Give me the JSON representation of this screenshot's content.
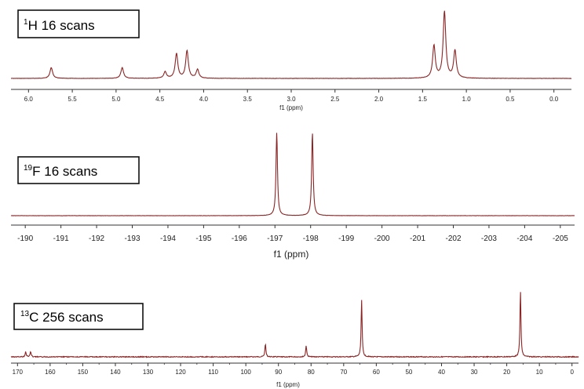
{
  "chart_data": [
    {
      "type": "line",
      "title_nucleus": "1",
      "title_element": "H",
      "title_text": " 16 scans",
      "xlabel": "f1 (ppm)",
      "x_reversed": true,
      "xlim": [
        6.2,
        -0.2
      ],
      "ticks": [
        6.0,
        5.5,
        5.0,
        4.5,
        4.0,
        3.5,
        3.0,
        2.5,
        2.0,
        1.5,
        1.0,
        0.5,
        0.0
      ],
      "tick_labels": [
        "6.0",
        "5.5",
        "5.0",
        "4.5",
        "4.0",
        "3.5",
        "3.0",
        "2.5",
        "2.0",
        "1.5",
        "1.0",
        "0.5",
        "0.0"
      ],
      "line_color": "#8b2525",
      "peaks": [
        {
          "x": 5.74,
          "y": 15
        },
        {
          "x": 4.93,
          "y": 15
        },
        {
          "x": 4.44,
          "y": 9
        },
        {
          "x": 4.31,
          "y": 34
        },
        {
          "x": 4.19,
          "y": 38
        },
        {
          "x": 4.07,
          "y": 12
        },
        {
          "x": 1.37,
          "y": 45
        },
        {
          "x": 1.25,
          "y": 92
        },
        {
          "x": 1.13,
          "y": 38
        }
      ],
      "ylim": [
        0,
        100
      ]
    },
    {
      "type": "line",
      "title_nucleus": "19",
      "title_element": "F",
      "title_text": " 16 scans",
      "xlabel": "f1 (ppm)",
      "x_reversed": true,
      "xlim": [
        -189.6,
        -205.4
      ],
      "ticks": [
        -190,
        -191,
        -192,
        -193,
        -194,
        -195,
        -196,
        -197,
        -198,
        -199,
        -200,
        -201,
        -202,
        -203,
        -204,
        -205
      ],
      "tick_labels": [
        "-190",
        "-191",
        "-192",
        "-193",
        "-194",
        "-195",
        "-196",
        "-197",
        "-198",
        "-199",
        "-200",
        "-201",
        "-202",
        "-203",
        "-204",
        "-205"
      ],
      "line_color": "#8b2525",
      "peaks": [
        {
          "x": -197.05,
          "y": 100
        },
        {
          "x": -198.05,
          "y": 100
        }
      ],
      "ylim": [
        0,
        100
      ]
    },
    {
      "type": "line",
      "title_nucleus": "13",
      "title_element": "C",
      "title_text": " 256 scans",
      "xlabel": "f1 (ppm)",
      "x_reversed": true,
      "xlim": [
        172,
        -2
      ],
      "ticks": [
        170,
        160,
        150,
        140,
        130,
        120,
        110,
        100,
        90,
        80,
        70,
        60,
        50,
        40,
        30,
        20,
        10,
        0
      ],
      "tick_labels": [
        "170",
        "160",
        "150",
        "140",
        "130",
        "120",
        "110",
        "100",
        "90",
        "80",
        "70",
        "60",
        "50",
        "40",
        "30",
        "20",
        "10",
        "0"
      ],
      "line_color": "#8b2525",
      "peaks": [
        {
          "x": 167.5,
          "y": 8
        },
        {
          "x": 166.0,
          "y": 8
        },
        {
          "x": 94.0,
          "y": 20
        },
        {
          "x": 81.5,
          "y": 17
        },
        {
          "x": 64.5,
          "y": 85
        },
        {
          "x": 15.8,
          "y": 98
        }
      ],
      "ylim": [
        0,
        100
      ]
    }
  ]
}
